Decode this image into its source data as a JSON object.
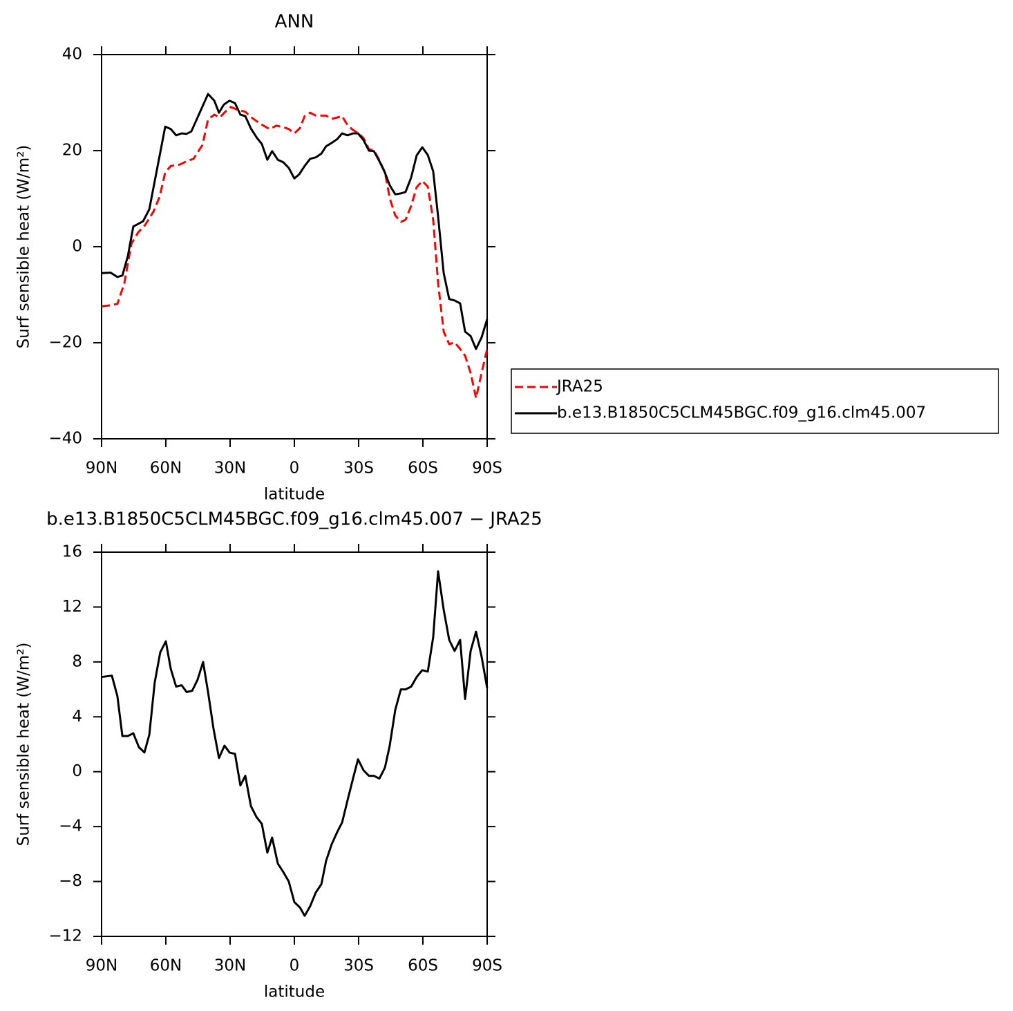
{
  "chart_data": [
    {
      "type": "line",
      "title": "ANN",
      "xlabel": "latitude",
      "ylabel": "Surf sensible heat (W/m²)",
      "xlim": [
        90,
        -90
      ],
      "xticks": [
        {
          "value": 90,
          "label": "90N"
        },
        {
          "value": 60,
          "label": "60N"
        },
        {
          "value": 30,
          "label": "30N"
        },
        0,
        {
          "value": -30,
          "label": "30S"
        },
        {
          "value": -60,
          "label": "60S"
        },
        {
          "value": -90,
          "label": "90S"
        }
      ],
      "ylim": [
        -40,
        40
      ],
      "yticks": [
        {
          "value": -40,
          "label": "−40"
        },
        {
          "value": -20,
          "label": "−20"
        },
        0,
        20,
        40
      ],
      "legend": "right",
      "series": [
        {
          "name": "JRA25",
          "color": "#ff0000",
          "dash": "dashed",
          "x": [
            90,
            85.8,
            82.6,
            79.4,
            76.1,
            72.9,
            69.7,
            65.8,
            62.9,
            60.3,
            57.7,
            53.5,
            50.3,
            47.1,
            42.9,
            40.3,
            37.4,
            34.8,
            32.3,
            29.7,
            26.5,
            22.9,
            19.7,
            15.5,
            11.6,
            8.4,
            5.2,
            2.6,
            0,
            -2.6,
            -4.8,
            -7.4,
            -10,
            -12.6,
            -14.8,
            -17.4,
            -20,
            -22.3,
            -24.8,
            -27.4,
            -29.7,
            -32.3,
            -34.8,
            -37.1,
            -39.7,
            -42.3,
            -44.5,
            -47.1,
            -49.7,
            -51.9,
            -54.5,
            -57.1,
            -59.7,
            -62.3,
            -64.8,
            -67.1,
            -69.7,
            -72.3,
            -74.8,
            -77.4,
            -79.7,
            -82.3,
            -84.8,
            -87.4,
            -90
          ],
          "values": [
            -12.4,
            -12.2,
            -11.9,
            -7.6,
            0.6,
            3,
            4.5,
            7.3,
            10.4,
            15.5,
            16.8,
            17.1,
            17.8,
            18.3,
            21.2,
            26.5,
            27.5,
            26.9,
            28.1,
            29.1,
            28.5,
            28.1,
            26.8,
            25.5,
            24.5,
            25.2,
            24.9,
            24.5,
            23.6,
            24.7,
            27.2,
            27.9,
            27.3,
            27.3,
            27.3,
            26.6,
            26.9,
            27.2,
            25.3,
            24.3,
            23.7,
            22.6,
            20.3,
            20.1,
            18,
            15.5,
            10.1,
            6.5,
            5.2,
            5.6,
            8.5,
            12.4,
            13.7,
            12.5,
            5.6,
            -7.6,
            -17.7,
            -20.3,
            -19.9,
            -21.3,
            -22.7,
            -26.3,
            -31.5,
            -26.3,
            -21.3
          ]
        },
        {
          "name": "b.e13.B1850C5CLM45BGC.f09_g16.clm45.007",
          "color": "#000000",
          "dash": "solid",
          "x": [
            90,
            85.8,
            82.6,
            80.3,
            77.7,
            75.2,
            70.6,
            67.7,
            60.3,
            57.7,
            55.2,
            52.6,
            50.3,
            48.1,
            40.3,
            37.4,
            35.2,
            32.9,
            30.3,
            27.7,
            25.2,
            22.9,
            20.3,
            17.4,
            15.2,
            12.6,
            10.4,
            7.7,
            5.2,
            2.6,
            0,
            -2.3,
            -4.8,
            -7.4,
            -10,
            -12.6,
            -14.8,
            -17.4,
            -20,
            -22.3,
            -24.8,
            -27.4,
            -29.7,
            -32.3,
            -34.8,
            -37.1,
            -39.7,
            -42.3,
            -44.5,
            -47.1,
            -49.7,
            -51.9,
            -54.5,
            -57.1,
            -59.7,
            -62.3,
            -64.8,
            -67.1,
            -69.7,
            -72.3,
            -74.8,
            -77.4,
            -79.7,
            -82.3,
            -84.8,
            -87.4,
            -90
          ],
          "values": [
            -5.5,
            -5.4,
            -6.3,
            -6,
            -1.9,
            4.2,
            5.3,
            7.8,
            25,
            24.5,
            23.2,
            23.6,
            23.5,
            24,
            31.8,
            30.4,
            27.9,
            29.6,
            30.4,
            29.9,
            27.5,
            27.2,
            24.6,
            22.6,
            21.4,
            18.1,
            19.9,
            18.1,
            17.6,
            16.4,
            14.2,
            15.1,
            16.8,
            18.3,
            18.6,
            19.4,
            20.9,
            21.6,
            22.4,
            23.6,
            23.2,
            23.6,
            23.6,
            22.2,
            20,
            19.9,
            17.8,
            15.4,
            12.8,
            10.9,
            11.1,
            11.4,
            14.4,
            19,
            20.7,
            19.1,
            15.7,
            6.3,
            -5.5,
            -10.9,
            -11.2,
            -11.8,
            -17.7,
            -18.6,
            -21.3,
            -18.9,
            -15.1
          ]
        }
      ]
    },
    {
      "type": "line",
      "title": "b.e13.B1850C5CLM45BGC.f09_g16.clm45.007 − JRA25",
      "xlabel": "latitude",
      "ylabel": "Surf sensible heat (W/m²)",
      "xlim": [
        90,
        -90
      ],
      "xticks": [
        {
          "value": 90,
          "label": "90N"
        },
        {
          "value": 60,
          "label": "60N"
        },
        {
          "value": 30,
          "label": "30N"
        },
        0,
        {
          "value": -30,
          "label": "30S"
        },
        {
          "value": -60,
          "label": "60S"
        },
        {
          "value": -90,
          "label": "90S"
        }
      ],
      "ylim": [
        -12,
        16
      ],
      "yticks": [
        {
          "value": -12,
          "label": "−12"
        },
        {
          "value": -8,
          "label": "−8"
        },
        {
          "value": -4,
          "label": "−4"
        },
        0,
        4,
        8,
        12,
        16
      ],
      "color": "#000000",
      "x": [
        90,
        85.2,
        82.6,
        80.3,
        77.7,
        75.2,
        72.6,
        70,
        67.7,
        65.2,
        62.6,
        60,
        57.7,
        55.2,
        52.6,
        50.3,
        47.7,
        45.2,
        42.6,
        40.3,
        37.7,
        35.2,
        32.6,
        30.3,
        27.7,
        25.2,
        22.9,
        20.3,
        17.7,
        15.2,
        12.6,
        10.4,
        7.7,
        5.2,
        2.6,
        0,
        -2.6,
        -4.8,
        -7.4,
        -10,
        -12.6,
        -14.8,
        -17.4,
        -20,
        -22.3,
        -24.8,
        -27.4,
        -29.7,
        -32.3,
        -34.8,
        -37.1,
        -39.7,
        -42.3,
        -44.5,
        -47.1,
        -49.7,
        -51.9,
        -54.5,
        -57.1,
        -59.7,
        -62.3,
        -64.8,
        -67.1,
        -69.7,
        -72.3,
        -74.8,
        -77.4,
        -79.7,
        -82.3,
        -84.8,
        -87.4,
        -90
      ],
      "values": [
        6.9,
        7,
        5.5,
        2.6,
        2.6,
        2.8,
        1.8,
        1.4,
        2.7,
        6.5,
        8.7,
        9.5,
        7.5,
        6.2,
        6.3,
        5.8,
        5.9,
        6.7,
        8,
        5.8,
        3.1,
        1,
        1.9,
        1.4,
        1.3,
        -1,
        -0.3,
        -2.5,
        -3.3,
        -3.8,
        -5.9,
        -4.8,
        -6.7,
        -7.3,
        -8,
        -9.5,
        -9.9,
        -10.5,
        -9.8,
        -8.8,
        -8.2,
        -6.5,
        -5.3,
        -4.4,
        -3.7,
        -2.1,
        -0.5,
        0.9,
        0.1,
        -0.3,
        -0.3,
        -0.5,
        0.3,
        1.9,
        4.5,
        6,
        6,
        6.2,
        6.9,
        7.4,
        7.3,
        9.8,
        14.6,
        11.8,
        9.6,
        8.8,
        9.6,
        5.3,
        8.8,
        10.2,
        8.4,
        6.1
      ]
    }
  ]
}
